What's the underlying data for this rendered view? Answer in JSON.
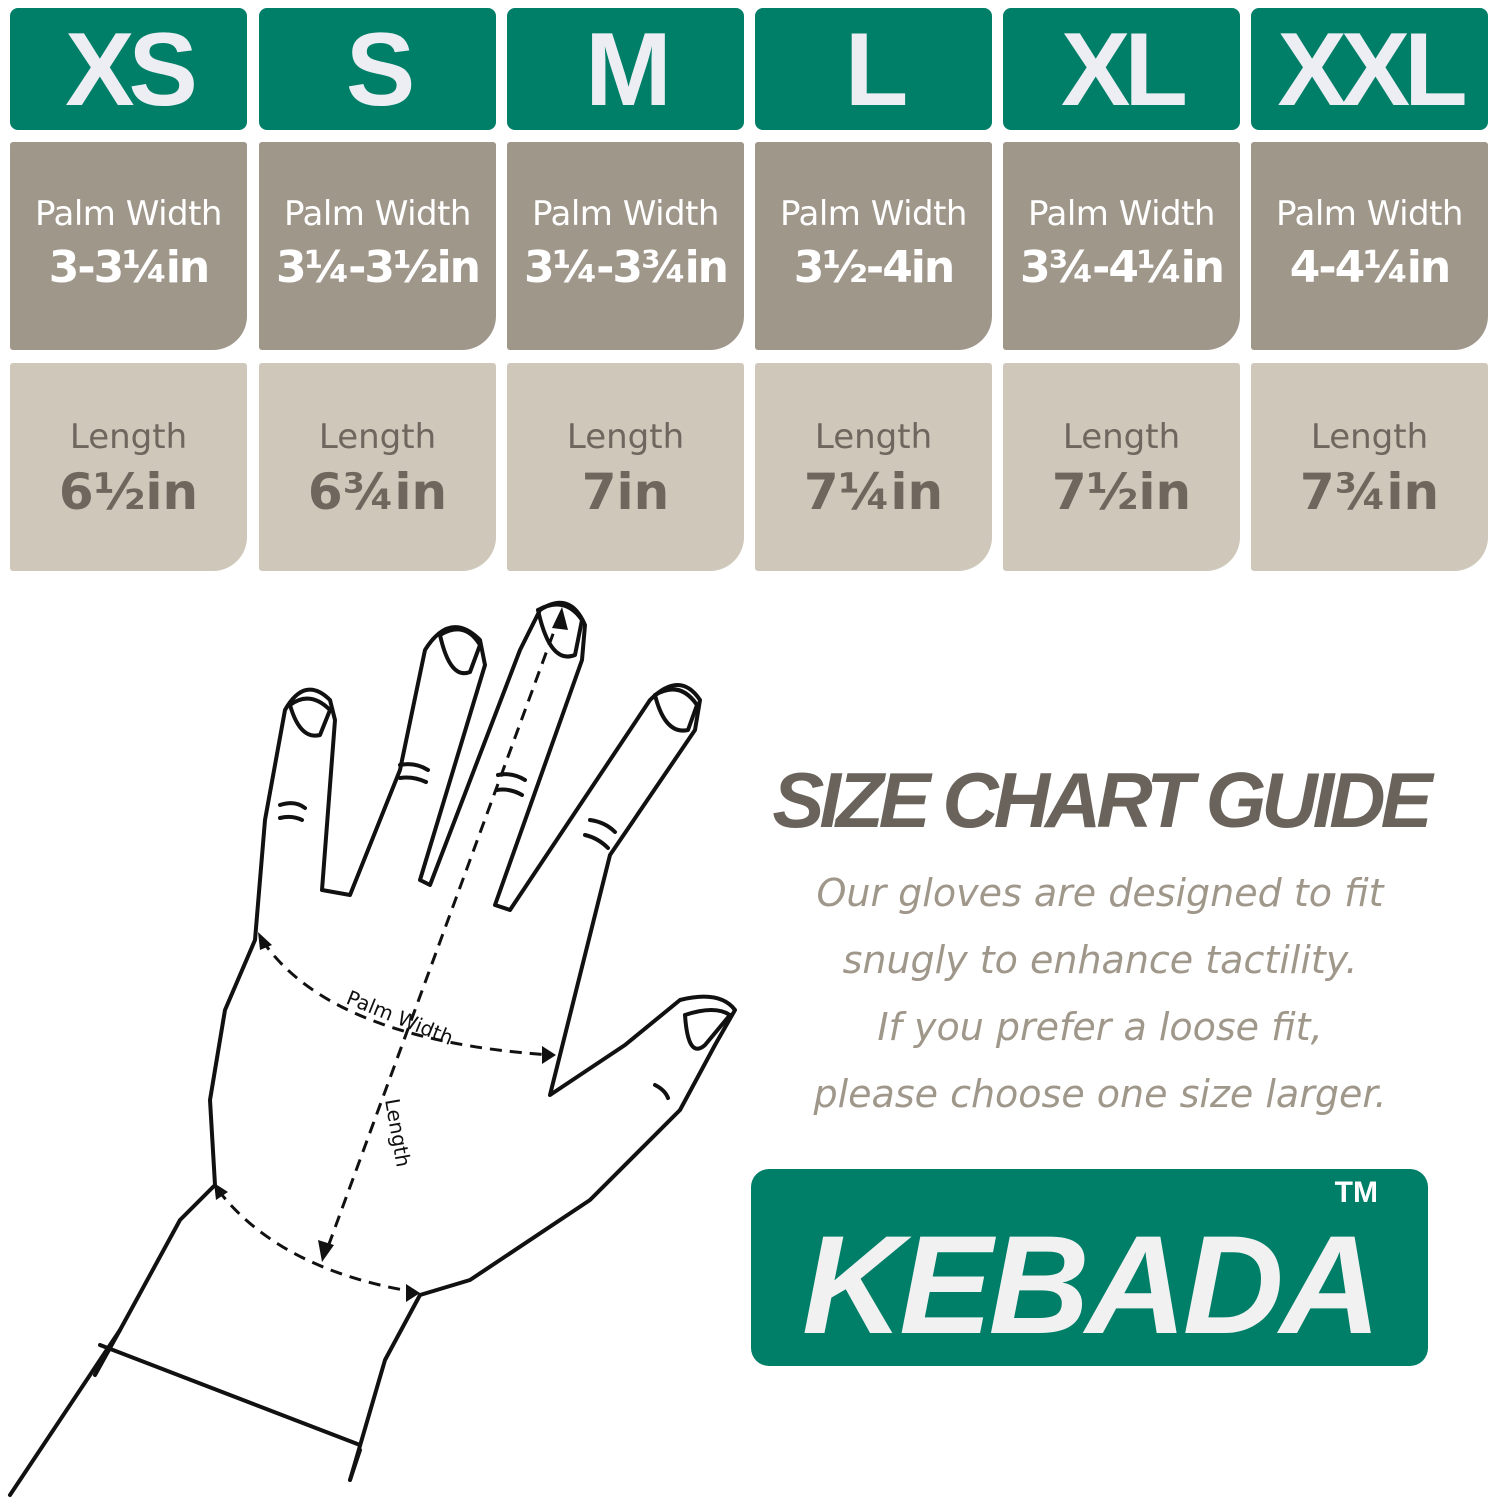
{
  "sizes": [
    {
      "size": "XS",
      "palm_label": "Palm Width",
      "palm": "3-3¼in",
      "length_label": "Length",
      "length": "6½in"
    },
    {
      "size": "S",
      "palm_label": "Palm Width",
      "palm": "3¼-3½in",
      "length_label": "Length",
      "length": "6¾in"
    },
    {
      "size": "M",
      "palm_label": "Palm Width",
      "palm": "3¼-3¾in",
      "length_label": "Length",
      "length": "7in"
    },
    {
      "size": "L",
      "palm_label": "Palm Width",
      "palm": "3½-4in",
      "length_label": "Length",
      "length": "7¼in"
    },
    {
      "size": "XL",
      "palm_label": "Palm Width",
      "palm": "3¾-4¼in",
      "length_label": "Length",
      "length": "7½in"
    },
    {
      "size": "XXL",
      "palm_label": "Palm Width",
      "palm": "4-4¼in",
      "length_label": "Length",
      "length": "7¾in"
    }
  ],
  "diagram": {
    "palm_label": "Palm Width",
    "length_label": "Length"
  },
  "guide": {
    "title": "SIZE CHART GUIDE",
    "lines": [
      "Our gloves are designed to fit",
      "snugly to enhance tactility.",
      "If you prefer a loose fit,",
      "please choose one size larger."
    ]
  },
  "brand": {
    "name": "KEBADA",
    "trademark": "TM"
  },
  "colors": {
    "green": "#007f68",
    "taupe_dark": "#a0978b",
    "taupe_light": "#cfc7ba",
    "text_dark": "#6a635b"
  }
}
